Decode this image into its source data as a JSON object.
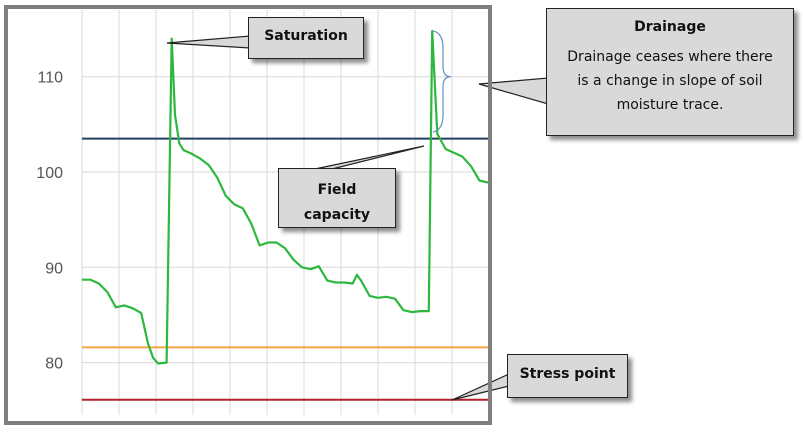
{
  "chart_data": {
    "type": "line",
    "title": "",
    "xlabel": "",
    "ylabel": "",
    "ylim": [
      74.5,
      117
    ],
    "yticks": [
      80,
      90,
      100,
      110
    ],
    "grid": true,
    "series": [
      {
        "color": "#2db83d",
        "points": [
          [
            0,
            88.7
          ],
          [
            1,
            88.7
          ],
          [
            2,
            88.3
          ],
          [
            3,
            87.4
          ],
          [
            4,
            85.8
          ],
          [
            5,
            86.0
          ],
          [
            6,
            85.7
          ],
          [
            7,
            85.2
          ],
          [
            7.8,
            82.0
          ],
          [
            8.4,
            80.5
          ],
          [
            9,
            79.9
          ],
          [
            10,
            80.0
          ],
          [
            10.6,
            114.0
          ],
          [
            11,
            106.0
          ],
          [
            11.5,
            103.0
          ],
          [
            12,
            102.3
          ],
          [
            13,
            101.9
          ],
          [
            14,
            101.4
          ],
          [
            15,
            100.7
          ],
          [
            16,
            99.4
          ],
          [
            17,
            97.5
          ],
          [
            18,
            96.6
          ],
          [
            19,
            96.2
          ],
          [
            20,
            94.6
          ],
          [
            21,
            92.3
          ],
          [
            22,
            92.6
          ],
          [
            23,
            92.6
          ],
          [
            24,
            92.0
          ],
          [
            25,
            90.8
          ],
          [
            26,
            90.0
          ],
          [
            27,
            89.8
          ],
          [
            28,
            90.1
          ],
          [
            29,
            88.6
          ],
          [
            30,
            88.4
          ],
          [
            31,
            88.4
          ],
          [
            32,
            88.3
          ],
          [
            32.5,
            89.2
          ],
          [
            33,
            88.6
          ],
          [
            34,
            87.0
          ],
          [
            35,
            86.8
          ],
          [
            36,
            86.9
          ],
          [
            37,
            86.7
          ],
          [
            38,
            85.5
          ],
          [
            39,
            85.3
          ],
          [
            40,
            85.4
          ],
          [
            41,
            85.4
          ],
          [
            41.4,
            114.8
          ],
          [
            42,
            104.0
          ],
          [
            43,
            102.4
          ],
          [
            44,
            102.0
          ],
          [
            45,
            101.6
          ],
          [
            46,
            100.6
          ],
          [
            47,
            99.1
          ],
          [
            48,
            98.9
          ]
        ]
      }
    ],
    "reference_lines": [
      {
        "y": 103.5,
        "color": "#243e5e"
      },
      {
        "y": 81.6,
        "color": "#f6a542"
      },
      {
        "y": 76.1,
        "color": "#b3202a"
      }
    ],
    "annotations": {
      "saturation": {
        "title": "Saturation"
      },
      "field_capacity": {
        "line1": "Field",
        "line2": "capacity"
      },
      "drainage": {
        "title": "Drainage",
        "line1": "Drainage ceases where there",
        "line2": "is a change in slope of soil",
        "line3": "moisture trace."
      },
      "stress_point": {
        "title": "Stress point"
      }
    }
  }
}
